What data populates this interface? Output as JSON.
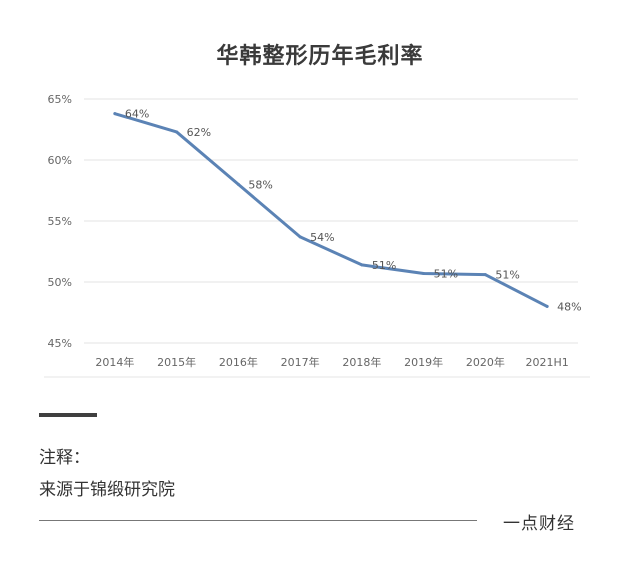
{
  "chart_data": {
    "type": "line",
    "title": "华韩整形历年毛利率",
    "categories": [
      "2014年",
      "2015年",
      "2016年",
      "2017年",
      "2018年",
      "2019年",
      "2020年",
      "2021H1"
    ],
    "series": [
      {
        "values": [
          63.8,
          62.3,
          58.0,
          53.7,
          51.4,
          50.7,
          50.6,
          48.0
        ],
        "labels": [
          "64%",
          "62%",
          "58%",
          "54%",
          "51%",
          "51%",
          "51%",
          "48%"
        ]
      }
    ],
    "yticks": [
      "65%",
      "60%",
      "55%",
      "50%",
      "45%"
    ],
    "ytick_values": [
      65,
      60,
      55,
      50,
      45
    ],
    "ylim": [
      45,
      65
    ],
    "grid": true,
    "line_color": "#5b83b5"
  },
  "notes": {
    "label": "注释：",
    "source": "来源于锦缎研究院"
  },
  "brand": "一点财经"
}
